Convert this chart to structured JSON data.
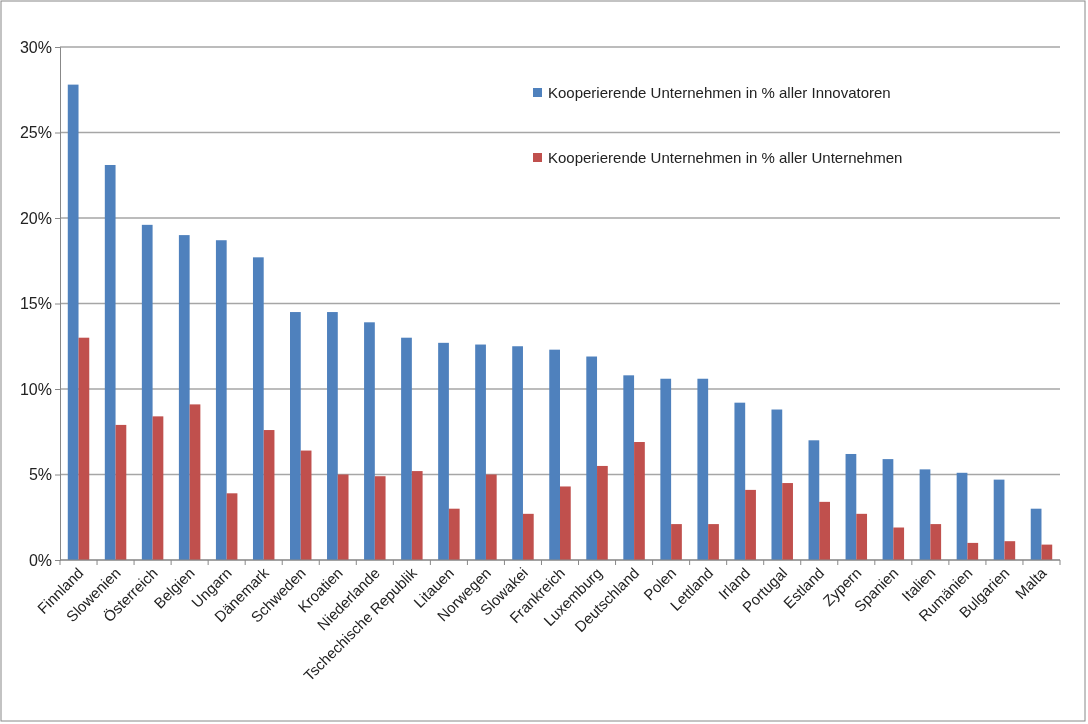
{
  "chart_data": {
    "type": "bar",
    "categories": [
      "Finnland",
      "Slowenien",
      "Österreich",
      "Belgien",
      "Ungarn",
      "Dänemark",
      "Schweden",
      "Kroatien",
      "Niederlande",
      "Tschechische Republik",
      "Litauen",
      "Norwegen",
      "Slowakei",
      "Frankreich",
      "Luxemburg",
      "Deutschland",
      "Polen",
      "Lettland",
      "Irland",
      "Portugal",
      "Estland",
      "Zypern",
      "Spanien",
      "Italien",
      "Rumänien",
      "Bulgarien",
      "Malta"
    ],
    "series": [
      {
        "name": "Kooperierende Unternehmen in % aller Innovatoren",
        "color": "#4f81bd",
        "values": [
          27.8,
          23.1,
          19.6,
          19.0,
          18.7,
          17.7,
          14.5,
          14.5,
          13.9,
          13.0,
          12.7,
          12.6,
          12.5,
          12.3,
          11.9,
          10.8,
          10.6,
          10.6,
          9.2,
          8.8,
          7.0,
          6.2,
          5.9,
          5.3,
          5.1,
          4.7,
          3.0
        ]
      },
      {
        "name": "Kooperierende Unternehmen in % aller Unternehmen",
        "color": "#c0504d",
        "values": [
          13.0,
          7.9,
          8.4,
          9.1,
          3.9,
          7.6,
          6.4,
          5.0,
          4.9,
          5.2,
          3.0,
          5.0,
          2.7,
          4.3,
          5.5,
          6.9,
          2.1,
          2.1,
          4.1,
          4.5,
          3.4,
          2.7,
          1.9,
          2.1,
          1.0,
          1.1,
          0.9
        ]
      }
    ],
    "ylim": [
      0,
      30
    ],
    "yticks": [
      {
        "value": 0,
        "label": "0%"
      },
      {
        "value": 5,
        "label": "5%"
      },
      {
        "value": 10,
        "label": "10%"
      },
      {
        "value": 15,
        "label": "15%"
      },
      {
        "value": 20,
        "label": "20%"
      },
      {
        "value": 25,
        "label": "25%"
      },
      {
        "value": 30,
        "label": "30%"
      }
    ],
    "grid": "y",
    "legend": "top right"
  }
}
